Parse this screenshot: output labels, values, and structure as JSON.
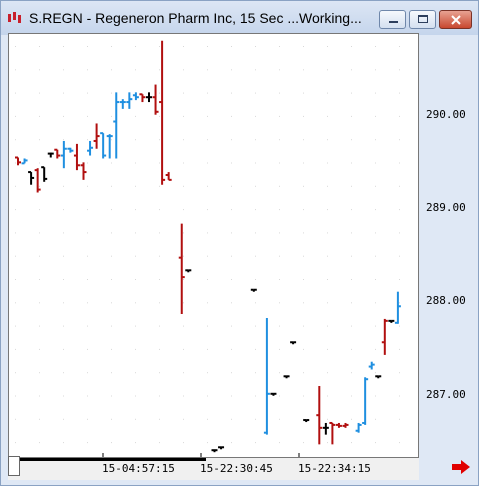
{
  "window": {
    "title": "S.REGN - Regeneron Pharm Inc, 15 Sec ...Working...",
    "icon": "app-bars-icon",
    "buttons": [
      "minimize-icon",
      "maximize-icon",
      "close-icon"
    ]
  },
  "colors": {
    "up": "#1f8fe0",
    "down": "#b10f0f",
    "flat": "#000000",
    "grid": "#d8d8d8"
  },
  "chart_data": {
    "type": "ohlc-bar",
    "ylim": [
      286.45,
      290.8
    ],
    "y_ticks": [
      "290.00",
      "289.00",
      "288.00",
      "287.00"
    ],
    "x_tick_labels": [
      "15-04:57:15",
      "15-22:30:45",
      "15-22:34:15"
    ],
    "bars": [
      {
        "x": 0,
        "o": 289.53,
        "h": 289.53,
        "l": 289.45,
        "c": 289.48,
        "dir": "down"
      },
      {
        "x": 1,
        "o": 289.47,
        "h": 289.52,
        "l": 289.47,
        "c": 289.5,
        "dir": "up"
      },
      {
        "x": 2,
        "o": 289.38,
        "h": 289.38,
        "l": 289.25,
        "c": 289.32,
        "dir": "flat"
      },
      {
        "x": 3,
        "o": 289.4,
        "h": 289.42,
        "l": 289.17,
        "c": 289.2,
        "dir": "down"
      },
      {
        "x": 4,
        "o": 289.43,
        "h": 289.43,
        "l": 289.28,
        "c": 289.31,
        "dir": "flat"
      },
      {
        "x": 5,
        "o": 289.57,
        "h": 289.58,
        "l": 289.53,
        "c": 289.57,
        "dir": "flat"
      },
      {
        "x": 6,
        "o": 289.61,
        "h": 289.61,
        "l": 289.52,
        "c": 289.55,
        "dir": "down"
      },
      {
        "x": 7,
        "o": 289.55,
        "h": 289.7,
        "l": 289.42,
        "c": 289.62,
        "dir": "up"
      },
      {
        "x": 8,
        "o": 289.62,
        "h": 289.63,
        "l": 289.58,
        "c": 289.6,
        "dir": "up"
      },
      {
        "x": 9,
        "o": 289.55,
        "h": 289.67,
        "l": 289.4,
        "c": 289.45,
        "dir": "down"
      },
      {
        "x": 10,
        "o": 289.45,
        "h": 289.48,
        "l": 289.3,
        "c": 289.38,
        "dir": "down"
      },
      {
        "x": 11,
        "o": 289.6,
        "h": 289.7,
        "l": 289.55,
        "c": 289.63,
        "dir": "up"
      },
      {
        "x": 12,
        "o": 289.7,
        "h": 289.88,
        "l": 289.62,
        "c": 289.75,
        "dir": "down"
      },
      {
        "x": 13,
        "o": 289.78,
        "h": 289.78,
        "l": 289.52,
        "c": 289.55,
        "dir": "up"
      },
      {
        "x": 14,
        "o": 289.75,
        "h": 289.77,
        "l": 289.52,
        "c": 289.75,
        "dir": "up"
      },
      {
        "x": 15,
        "o": 289.9,
        "h": 290.2,
        "l": 289.52,
        "c": 290.1,
        "dir": "up"
      },
      {
        "x": 16,
        "o": 290.1,
        "h": 290.13,
        "l": 290.03,
        "c": 290.1,
        "dir": "up"
      },
      {
        "x": 17,
        "o": 290.1,
        "h": 290.2,
        "l": 290.03,
        "c": 290.13,
        "dir": "up"
      },
      {
        "x": 18,
        "o": 290.17,
        "h": 290.2,
        "l": 290.12,
        "c": 290.15,
        "dir": "up"
      },
      {
        "x": 19,
        "o": 290.18,
        "h": 290.18,
        "l": 290.1,
        "c": 290.15,
        "dir": "down"
      },
      {
        "x": 20,
        "o": 290.15,
        "h": 290.2,
        "l": 290.1,
        "c": 290.15,
        "dir": "flat"
      },
      {
        "x": 21,
        "o": 290.15,
        "h": 290.28,
        "l": 289.97,
        "c": 290.0,
        "dir": "down"
      },
      {
        "x": 22,
        "o": 290.1,
        "h": 290.73,
        "l": 289.25,
        "c": 289.3,
        "dir": "down"
      },
      {
        "x": 23,
        "o": 289.35,
        "h": 289.38,
        "l": 289.3,
        "c": 289.3,
        "dir": "down"
      },
      {
        "x": 25,
        "o": 288.5,
        "h": 288.85,
        "l": 287.92,
        "c": 288.3,
        "dir": "down"
      },
      {
        "x": 26,
        "o": 288.37,
        "h": 288.37,
        "l": 288.37,
        "c": 288.37,
        "dir": "flat"
      },
      {
        "x": 30,
        "o": 286.52,
        "h": 286.52,
        "l": 286.52,
        "c": 286.52,
        "dir": "flat"
      },
      {
        "x": 31,
        "o": 286.55,
        "h": 286.55,
        "l": 286.55,
        "c": 286.55,
        "dir": "flat"
      },
      {
        "x": 36,
        "o": 288.17,
        "h": 288.17,
        "l": 288.17,
        "c": 288.17,
        "dir": "flat"
      },
      {
        "x": 38,
        "o": 286.7,
        "h": 287.88,
        "l": 286.68,
        "c": 287.1,
        "dir": "up"
      },
      {
        "x": 39,
        "o": 287.1,
        "h": 287.1,
        "l": 287.1,
        "c": 287.1,
        "dir": "flat"
      },
      {
        "x": 41,
        "o": 287.28,
        "h": 287.28,
        "l": 287.28,
        "c": 287.28,
        "dir": "flat"
      },
      {
        "x": 42,
        "o": 287.63,
        "h": 287.63,
        "l": 287.63,
        "c": 287.63,
        "dir": "flat"
      },
      {
        "x": 44,
        "o": 286.83,
        "h": 286.83,
        "l": 286.83,
        "c": 286.83,
        "dir": "flat"
      },
      {
        "x": 46,
        "o": 286.88,
        "h": 287.18,
        "l": 286.58,
        "c": 286.75,
        "dir": "down"
      },
      {
        "x": 47,
        "o": 286.75,
        "h": 286.8,
        "l": 286.68,
        "c": 286.75,
        "dir": "flat"
      },
      {
        "x": 48,
        "o": 286.8,
        "h": 286.8,
        "l": 286.58,
        "c": 286.78,
        "dir": "down"
      },
      {
        "x": 49,
        "o": 286.78,
        "h": 286.8,
        "l": 286.75,
        "c": 286.77,
        "dir": "down"
      },
      {
        "x": 50,
        "o": 286.77,
        "h": 286.8,
        "l": 286.75,
        "c": 286.78,
        "dir": "down"
      },
      {
        "x": 52,
        "o": 286.72,
        "h": 286.8,
        "l": 286.7,
        "c": 286.78,
        "dir": "up"
      },
      {
        "x": 53,
        "o": 286.8,
        "h": 287.27,
        "l": 286.78,
        "c": 287.25,
        "dir": "up"
      },
      {
        "x": 54,
        "o": 287.38,
        "h": 287.43,
        "l": 287.35,
        "c": 287.4,
        "dir": "up"
      },
      {
        "x": 55,
        "o": 287.28,
        "h": 287.28,
        "l": 287.28,
        "c": 287.28,
        "dir": "flat"
      },
      {
        "x": 56,
        "o": 287.63,
        "h": 287.87,
        "l": 287.5,
        "c": 287.85,
        "dir": "down"
      },
      {
        "x": 57,
        "o": 287.85,
        "h": 287.85,
        "l": 287.85,
        "c": 287.85,
        "dir": "flat"
      },
      {
        "x": 58,
        "o": 287.83,
        "h": 288.15,
        "l": 287.82,
        "c": 288.0,
        "dir": "up"
      }
    ]
  }
}
